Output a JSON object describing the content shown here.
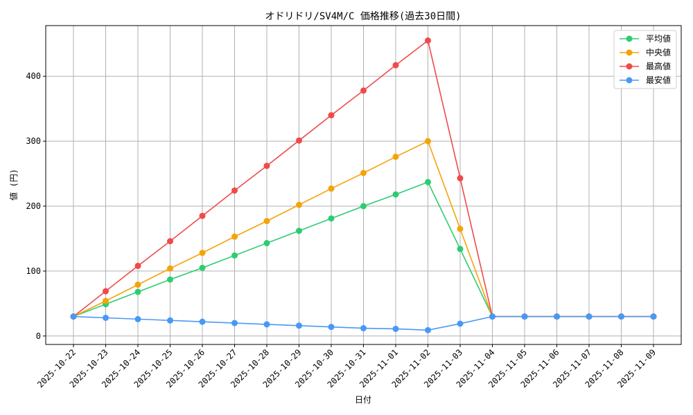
{
  "chart_data": {
    "type": "line",
    "title": "オドリドリ/SV4M/C 価格推移(過去30日間)",
    "xlabel": "日付",
    "ylabel": "値 (円)",
    "x": [
      "2025-10-22",
      "2025-10-23",
      "2025-10-24",
      "2025-10-25",
      "2025-10-26",
      "2025-10-27",
      "2025-10-28",
      "2025-10-29",
      "2025-10-30",
      "2025-10-31",
      "2025-11-01",
      "2025-11-02",
      "2025-11-03",
      "2025-11-04",
      "2025-11-05",
      "2025-11-06",
      "2025-11-07",
      "2025-11-08",
      "2025-11-09"
    ],
    "ylim": [
      -13,
      478
    ],
    "yticks": [
      0,
      100,
      200,
      300,
      400
    ],
    "grid": true,
    "legend_position": "top-right",
    "series": [
      {
        "name": "平均値",
        "color": "#2ecc71",
        "values": [
          30,
          49,
          68,
          87,
          105,
          124,
          143,
          162,
          181,
          200,
          218,
          237,
          134,
          30,
          30,
          30,
          30,
          30,
          30
        ]
      },
      {
        "name": "中央値",
        "color": "#f5a30a",
        "values": [
          30,
          54,
          79,
          104,
          128,
          153,
          177,
          202,
          227,
          251,
          276,
          300,
          165,
          30,
          30,
          30,
          30,
          30,
          30
        ]
      },
      {
        "name": "最高値",
        "color": "#f04a4a",
        "values": [
          30,
          69,
          108,
          146,
          185,
          224,
          262,
          301,
          340,
          378,
          417,
          455,
          243,
          30,
          30,
          30,
          30,
          30,
          30
        ]
      },
      {
        "name": "最安値",
        "color": "#4a98f5",
        "values": [
          30,
          28,
          26,
          24,
          22,
          20,
          18,
          16,
          14,
          12,
          11,
          9,
          19,
          30,
          30,
          30,
          30,
          30,
          30
        ]
      }
    ]
  }
}
